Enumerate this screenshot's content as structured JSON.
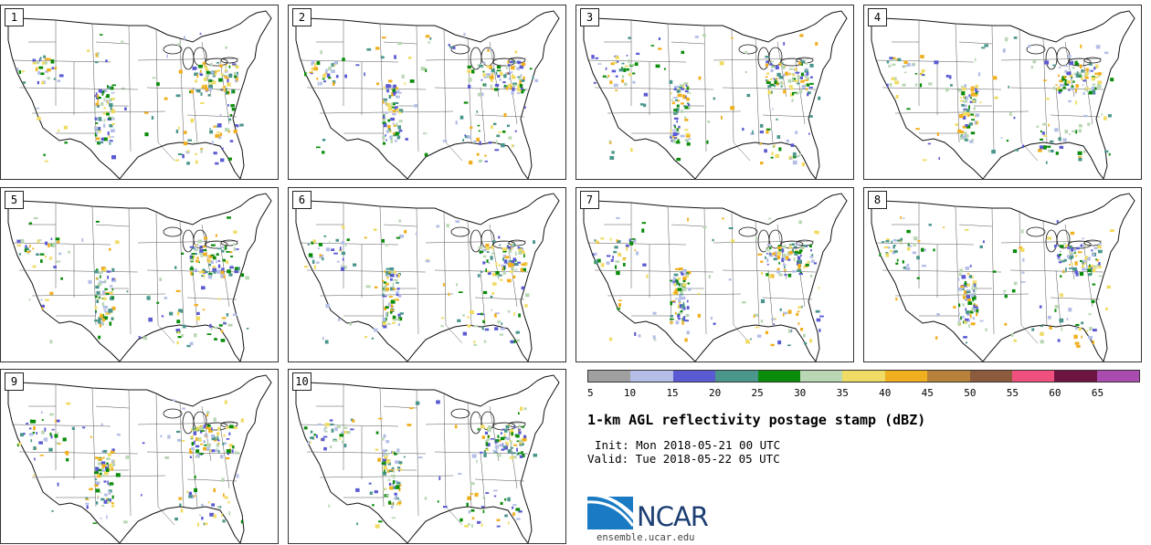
{
  "panels": [
    {
      "label": "1"
    },
    {
      "label": "2"
    },
    {
      "label": "3"
    },
    {
      "label": "4"
    },
    {
      "label": "5"
    },
    {
      "label": "6"
    },
    {
      "label": "7"
    },
    {
      "label": "8"
    },
    {
      "label": "9"
    },
    {
      "label": "10"
    }
  ],
  "colorbar": {
    "colors": [
      "#a0a0a0",
      "#b4bee6",
      "#5a5ad2",
      "#4b968c",
      "#0a8c0a",
      "#b9d7b4",
      "#f0dc64",
      "#f0af1e",
      "#b9823c",
      "#8c5a3c",
      "#f0507d",
      "#6e1441",
      "#aa4baf"
    ],
    "ticks": [
      "5",
      "10",
      "15",
      "20",
      "25",
      "30",
      "35",
      "40",
      "45",
      "50",
      "55",
      "60",
      "65"
    ]
  },
  "title": "1-km AGL reflectivity postage stamp (dBZ)",
  "init": "Init: Mon 2018-05-21 00 UTC",
  "valid": "Valid: Tue 2018-05-22 05 UTC",
  "logo": {
    "name": "NCAR",
    "url": "ensemble.ucar.edu"
  }
}
